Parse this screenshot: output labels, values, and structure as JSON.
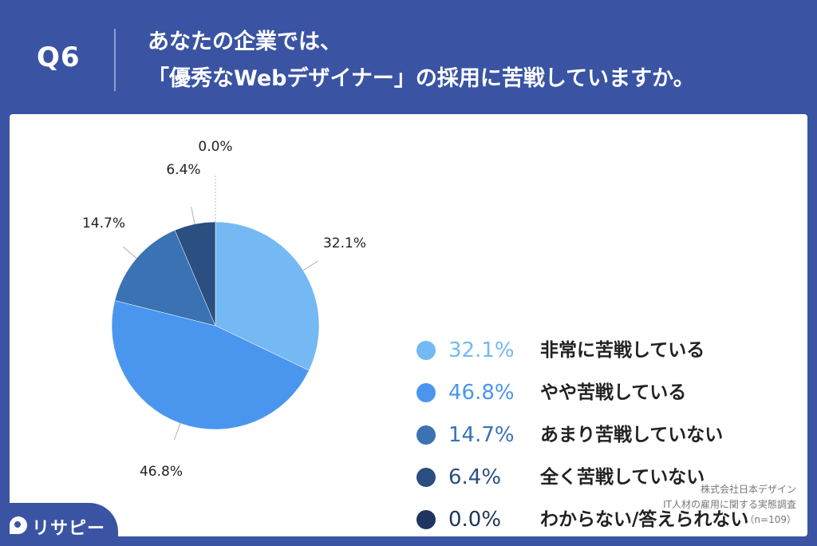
{
  "header": {
    "question_number": "Q6",
    "title_line1": "あなたの企業では、",
    "title_line2": "「優秀なWebデザイナー」の採用に苦戦していますか。"
  },
  "chart_data": {
    "type": "pie",
    "categories": [
      "非常に苦戦している",
      "やや苦戦している",
      "あまり苦戦していない",
      "全く苦戦していない",
      "わからない/答えられない"
    ],
    "values": [
      32.1,
      46.8,
      14.7,
      6.4,
      0.0
    ],
    "labels": [
      "32.1%",
      "46.8%",
      "14.7%",
      "6.4%",
      "0.0%"
    ],
    "colors": [
      "#74b9f4",
      "#4a96ee",
      "#3a72b3",
      "#2a4f80",
      "#1e3560"
    ],
    "legend_pct_colors": [
      "#74b9f4",
      "#4a96ee",
      "#3a72b3",
      "#2a4f80",
      "#1e3560"
    ],
    "start_angle": "12 o'clock",
    "direction": "clockwise",
    "legend_placement": "right"
  },
  "source": {
    "line1": "株式会社日本デザイン",
    "line2": "IT人材の雇用に関する実態調査",
    "line3": "（n=109）"
  },
  "logo": {
    "text": "リサピー"
  }
}
